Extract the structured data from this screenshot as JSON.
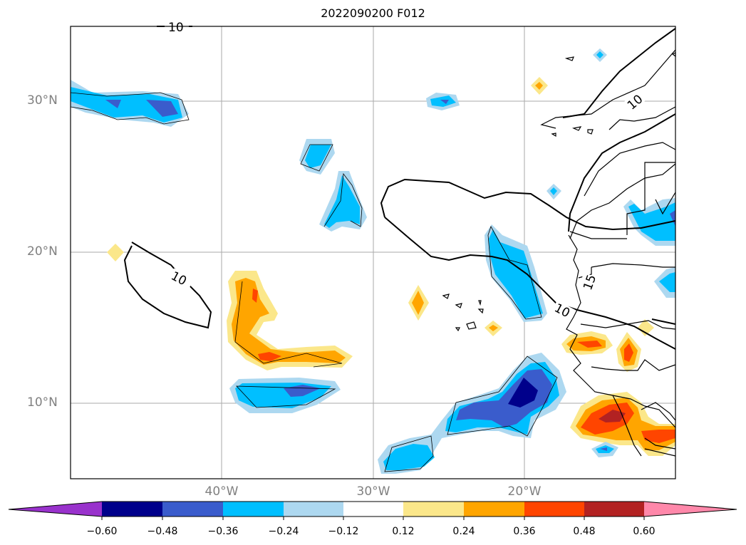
{
  "title": "2022090200 F012",
  "lat_labels": [
    "30°N",
    "20°N",
    "10°N"
  ],
  "lon_labels": [
    "40°W",
    "30°W",
    "20°W"
  ],
  "contour_labels": [
    "10",
    "10",
    "10",
    "10",
    "15"
  ],
  "colorbar": {
    "ticks": [
      "−0.60",
      "−0.48",
      "−0.36",
      "−0.24",
      "−0.12",
      "0.12",
      "0.24",
      "0.36",
      "0.48",
      "0.60"
    ],
    "colors": [
      "#9932cc",
      "#00008b",
      "#3a5ccc",
      "#00bfff",
      "#add8f0",
      "#ffffff",
      "#fbe78a",
      "#ffa500",
      "#ff4500",
      "#b22222",
      "#ff88aa"
    ]
  }
}
